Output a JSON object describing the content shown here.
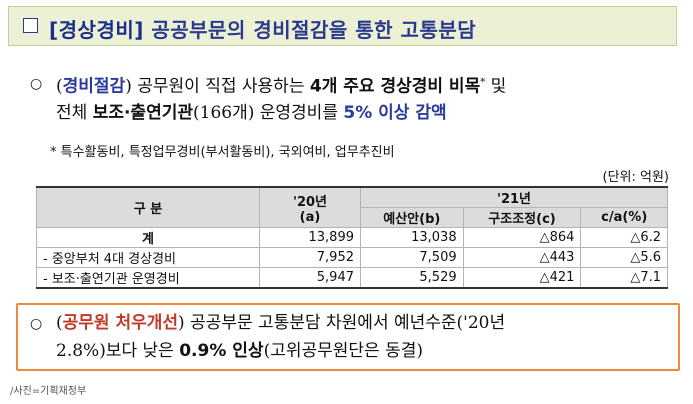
{
  "title": {
    "checkbox": "□",
    "tag": "[경상경비]",
    "text": "공공부문의 경비절감을 통한 고통분담"
  },
  "section1": {
    "bullet": "○",
    "line1_open": "(",
    "line1_key": "경비절감",
    "line1_close": ")",
    "line1_mid": " 공무원이 직접 사용하는 ",
    "line1_bold": "4개 주요 경상경비 비목",
    "line1_sup": "*",
    "line1_end": " 및",
    "line2_start": "전체 ",
    "line2_bold": "보조·출연기관",
    "line2_mid": "(166개) 운영경비를 ",
    "line2_pct": "5% 이상 감액",
    "footnote": "* 특수활동비, 특정업무경비(부서활동비), 국외여비, 업무추진비"
  },
  "table": {
    "unit": "(단위: 억원)",
    "headers": {
      "label": "구 분",
      "y20": "'20년",
      "y20_sub": "(a)",
      "y21": "'21년",
      "budget": "예산안(b)",
      "restructure": "구조조정(c)",
      "ratio": "c/a(%)"
    },
    "rows": [
      {
        "label": "계",
        "a": "13,899",
        "b": "13,038",
        "c": "△864",
        "r": "△6.2"
      },
      {
        "label": "- 중앙부처 4대 경상경비",
        "a": "7,952",
        "b": "7,509",
        "c": "△443",
        "r": "△5.6"
      },
      {
        "label": "- 보조·출연기관 운영경비",
        "a": "5,947",
        "b": "5,529",
        "c": "△421",
        "r": "△7.1"
      }
    ]
  },
  "section2": {
    "bullet": "○",
    "open": "(",
    "key": "공무원 처우개선",
    "close": ")",
    "line1_rest": " 공공부문 고통분담 차원에서 예년수준('20년",
    "line2_start": "2.8%)보다 낮은 ",
    "line2_bold": "0.9% 인상",
    "line2_end": "(고위공무원단은 동결)"
  },
  "caption": "/사진=기획재정부"
}
